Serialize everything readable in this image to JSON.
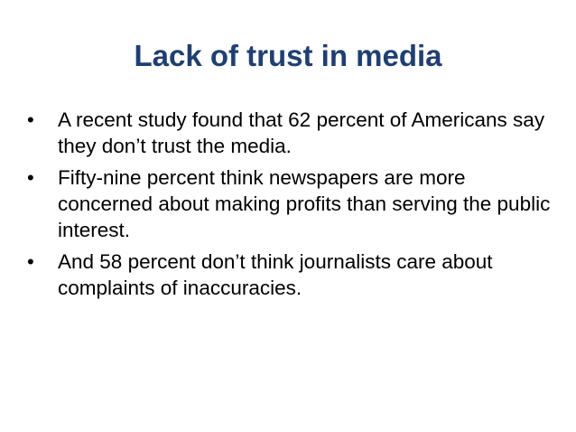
{
  "slide": {
    "title": "Lack of trust in media",
    "bullet_glyph": "•",
    "bullets": [
      "A recent study found that 62 percent of Americans say they don’t trust the media.",
      "Fifty-nine percent think newspapers are more concerned about making profits than serving the public interest.",
      "And 58 percent don’t think journalists care about complaints of inaccuracies."
    ]
  },
  "colors": {
    "title": "#1f3f73",
    "body_text": "#000000",
    "background": "#ffffff"
  }
}
